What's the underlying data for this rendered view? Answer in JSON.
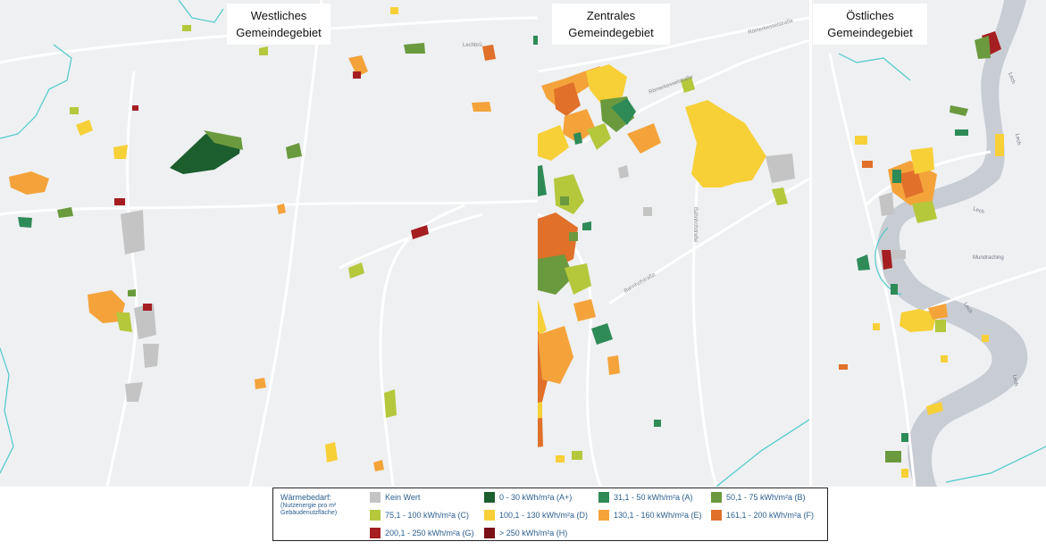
{
  "titles": {
    "west": [
      "Westliches",
      "Gemeindegebiet"
    ],
    "central": [
      "Zentrales",
      "Gemeindegebiet"
    ],
    "east": [
      "Östliches",
      "Gemeindegebiet"
    ]
  },
  "legend": {
    "title": "Wärmebedarf:",
    "subtitle": "(Nutzenergie pro m² Gebäudenutzfläche)",
    "items": [
      {
        "label": "Kein Wert",
        "color": "#c4c4c4"
      },
      {
        "label": "0 - 30 kWh/m²a (A+)",
        "color": "#1c5e2e"
      },
      {
        "label": "31,1 - 50 kWh/m²a (A)",
        "color": "#2e8b57"
      },
      {
        "label": "50,1 - 75 kWh/m²a (B)",
        "color": "#6b9a3e"
      },
      {
        "label": "75,1 - 100 kWh/m²a (C)",
        "color": "#b5c83c"
      },
      {
        "label": "100,1 - 130 kWh/m²a (D)",
        "color": "#f7d037"
      },
      {
        "label": "130,1 - 160 kWh/m²a (E)",
        "color": "#f4a33a"
      },
      {
        "label": "161,1 - 200 kWh/m²a (F)",
        "color": "#e0702a"
      },
      {
        "label": "200,1 - 250 kWh/m²a (G)",
        "color": "#a41e22"
      },
      {
        "label": "> 250 kWh/m²a (H)",
        "color": "#7a1018"
      }
    ]
  },
  "street_labels": {
    "lechbrue": "Lechbrü",
    "roemerkessel1": "Römerkesselstraße",
    "roemerkessel2": "Römerkesselstraße",
    "bahnhof": "Bahnhofstraße",
    "bahnhof2": "Bahnhofstraße",
    "lech1": "Lech",
    "lech2": "Lech",
    "lech3": "Lech",
    "lech4": "Lech",
    "lech5": "Lech",
    "mundraching": "Mundraching"
  },
  "colors": {
    "map_bg": "#eef0f2",
    "road": "#ffffff",
    "river": "#c8ccd3",
    "border": "#4fc9c9"
  }
}
